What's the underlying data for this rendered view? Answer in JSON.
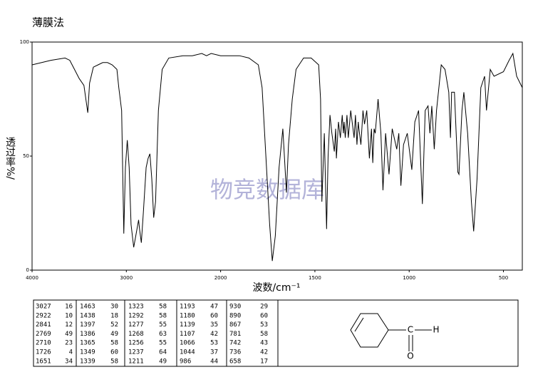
{
  "chart_data": {
    "type": "line",
    "title": "薄膜法",
    "xlabel": "波数/cm⁻¹",
    "ylabel": "透过率%/",
    "watermark": "物竞数据库",
    "xlim": [
      4000,
      400
    ],
    "xscale_break": {
      "at": 2000,
      "factor": 2
    },
    "xticks": [
      4000,
      3000,
      2000,
      1500,
      1000,
      500
    ],
    "ylim": [
      0,
      100
    ],
    "yticks": [
      0,
      50,
      100
    ],
    "color": "#000000",
    "x": [
      4000,
      3800,
      3650,
      3600,
      3550,
      3500,
      3450,
      3409,
      3390,
      3350,
      3300,
      3250,
      3200,
      3150,
      3100,
      3080,
      3050,
      3027,
      3010,
      2990,
      2970,
      2950,
      2922,
      2900,
      2870,
      2860,
      2841,
      2820,
      2790,
      2769,
      2750,
      2730,
      2710,
      2690,
      2660,
      2620,
      2550,
      2400,
      2300,
      2200,
      2150,
      2100,
      2000,
      1900,
      1850,
      1800,
      1780,
      1760,
      1740,
      1726,
      1710,
      1690,
      1670,
      1651,
      1640,
      1620,
      1600,
      1560,
      1520,
      1480,
      1470,
      1463,
      1450,
      1438,
      1430,
      1420,
      1410,
      1397,
      1390,
      1386,
      1375,
      1365,
      1355,
      1349,
      1345,
      1339,
      1330,
      1323,
      1310,
      1292,
      1285,
      1277,
      1270,
      1268,
      1256,
      1245,
      1237,
      1225,
      1211,
      1200,
      1193,
      1186,
      1180,
      1165,
      1150,
      1139,
      1125,
      1107,
      1090,
      1066,
      1055,
      1044,
      1030,
      1010,
      986,
      970,
      950,
      930,
      915,
      900,
      890,
      880,
      867,
      855,
      830,
      810,
      790,
      781,
      775,
      760,
      742,
      736,
      720,
      710,
      690,
      670,
      658,
      640,
      620,
      600,
      590,
      570,
      550,
      500,
      470,
      450,
      430,
      400
    ],
    "values": [
      90,
      92,
      93,
      92,
      88,
      84,
      81,
      69,
      82,
      89,
      90,
      91,
      91,
      90,
      88,
      80,
      70,
      16,
      45,
      57,
      45,
      20,
      10,
      15,
      22,
      18,
      12,
      25,
      45,
      49,
      51,
      40,
      23,
      30,
      70,
      88,
      93,
      94,
      94,
      95,
      94,
      95,
      94,
      94,
      93,
      90,
      80,
      50,
      20,
      4,
      15,
      45,
      62,
      34,
      55,
      75,
      88,
      93,
      93,
      90,
      75,
      30,
      60,
      18,
      50,
      68,
      60,
      52,
      62,
      49,
      65,
      58,
      68,
      60,
      65,
      58,
      68,
      58,
      70,
      58,
      68,
      55,
      65,
      63,
      55,
      70,
      64,
      70,
      49,
      62,
      47,
      62,
      60,
      75,
      60,
      35,
      60,
      42,
      62,
      53,
      60,
      37,
      55,
      60,
      44,
      65,
      70,
      29,
      70,
      72,
      60,
      72,
      53,
      70,
      90,
      88,
      78,
      58,
      78,
      78,
      43,
      42,
      70,
      78,
      60,
      30,
      17,
      40,
      80,
      85,
      70,
      88,
      85,
      87,
      92,
      95,
      85,
      80
    ]
  },
  "table": {
    "rows": [
      [
        3027,
        16,
        1463,
        30,
        1323,
        58,
        1193,
        47,
        930,
        29
      ],
      [
        2922,
        10,
        1438,
        18,
        1292,
        58,
        1180,
        60,
        890,
        60
      ],
      [
        2841,
        12,
        1397,
        52,
        1277,
        55,
        1139,
        35,
        867,
        53
      ],
      [
        2769,
        49,
        1386,
        49,
        1268,
        63,
        1107,
        42,
        781,
        58
      ],
      [
        2710,
        23,
        1365,
        58,
        1256,
        55,
        1066,
        53,
        742,
        43
      ],
      [
        1726,
        4,
        1349,
        60,
        1237,
        64,
        1044,
        37,
        736,
        42
      ],
      [
        1651,
        34,
        1339,
        58,
        1211,
        49,
        986,
        44,
        658,
        17
      ]
    ]
  },
  "structure": {
    "atoms": [
      "C",
      "H",
      "O"
    ]
  }
}
